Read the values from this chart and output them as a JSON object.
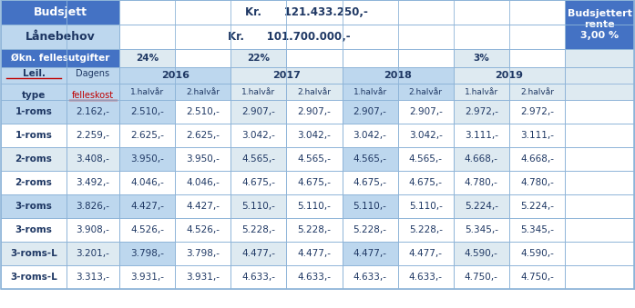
{
  "title_budget": "Budsjett",
  "title_budget_value": "Kr.      121.433.250,-",
  "title_loan": "Lånebehov",
  "title_loan_value": "Kr.      101.700.000,-",
  "title_rate": "Budsjettert\nrente\n3,00 %",
  "label_increase": "Økn. fellesutgifter",
  "increase_values": [
    "24%",
    "",
    "22%",
    "",
    "",
    "",
    "3%",
    ""
  ],
  "year_headers": [
    "2016",
    "2017",
    "2018",
    "2019"
  ],
  "half_headers": [
    "1.halvår",
    "2.halvår",
    "1.halvår",
    "2.halvår",
    "1.halvår",
    "2.halvår",
    "1.halvår",
    "2.halvår"
  ],
  "rows": [
    [
      "1-roms",
      "2.162,-",
      "2.510,-",
      "2.510,-",
      "2.907,-",
      "2.907,-",
      "2.907,-",
      "2.907,-",
      "2.972,-",
      "2.972,-"
    ],
    [
      "1-roms",
      "2.259,-",
      "2.625,-",
      "2.625,-",
      "3.042,-",
      "3.042,-",
      "3.042,-",
      "3.042,-",
      "3.111,-",
      "3.111,-"
    ],
    [
      "2-roms",
      "3.408,-",
      "3.950,-",
      "3.950,-",
      "4.565,-",
      "4.565,-",
      "4.565,-",
      "4.565,-",
      "4.668,-",
      "4.668,-"
    ],
    [
      "2-roms",
      "3.492,-",
      "4.046,-",
      "4.046,-",
      "4.675,-",
      "4.675,-",
      "4.675,-",
      "4.675,-",
      "4.780,-",
      "4.780,-"
    ],
    [
      "3-roms",
      "3.826,-",
      "4.427,-",
      "4.427,-",
      "5.110,-",
      "5.110,-",
      "5.110,-",
      "5.110,-",
      "5.224,-",
      "5.224,-"
    ],
    [
      "3-roms",
      "3.908,-",
      "4.526,-",
      "4.526,-",
      "5.228,-",
      "5.228,-",
      "5.228,-",
      "5.228,-",
      "5.345,-",
      "5.345,-"
    ],
    [
      "3-roms-L",
      "3.201,-",
      "3.798,-",
      "3.798,-",
      "4.477,-",
      "4.477,-",
      "4.477,-",
      "4.477,-",
      "4.590,-",
      "4.590,-"
    ],
    [
      "3-roms-L",
      "3.313,-",
      "3.931,-",
      "3.931,-",
      "4.633,-",
      "4.633,-",
      "4.633,-",
      "4.633,-",
      "4.750,-",
      "4.750,-"
    ]
  ],
  "color_mid_blue": "#4472C4",
  "color_header_blue": "#9DC3E6",
  "color_light_blue1": "#BDD7EE",
  "color_light_blue2": "#DEEAF1",
  "color_white": "#FFFFFF",
  "text_white": "#FFFFFF",
  "text_dark": "#1F3864",
  "text_red": "#C00000",
  "border_color": "#8EB4D8"
}
